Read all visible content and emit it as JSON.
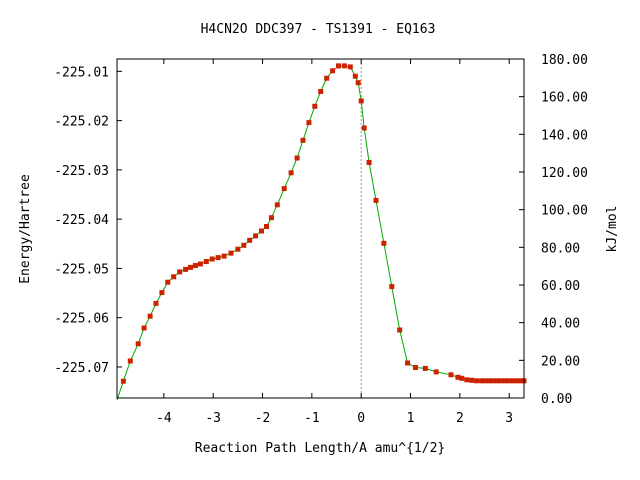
{
  "chart_data": {
    "type": "line",
    "title": "H4CN2O   DDC397 - TS1391 - EQ163",
    "xlabel": "Reaction Path Length/A amu^{1/2}",
    "ylabel": "Energy/Hartree",
    "y2label": "kJ/mol",
    "xlim": [
      -4.95,
      3.3
    ],
    "ylim": [
      -225.0763,
      -225.0075
    ],
    "y2lim": [
      0.0,
      180.0
    ],
    "x_ticks": [
      -4,
      -3,
      -2,
      -1,
      0,
      1,
      2,
      3
    ],
    "x_tick_labels": [
      "-4",
      "-3",
      "-2",
      "-1",
      "0",
      "1",
      "2",
      "3"
    ],
    "y_ticks": [
      -225.01,
      -225.02,
      -225.03,
      -225.04,
      -225.05,
      -225.06,
      -225.07
    ],
    "y_tick_labels": [
      "-225.01",
      "-225.02",
      "-225.03",
      "-225.04",
      "-225.05",
      "-225.06",
      "-225.07"
    ],
    "y2_ticks": [
      0,
      20,
      40,
      60,
      80,
      100,
      120,
      140,
      160,
      180
    ],
    "y2_tick_labels": [
      "0.00",
      "20.00",
      "40.00",
      "60.00",
      "80.00",
      "100.00",
      "120.00",
      "140.00",
      "160.00",
      "180.00"
    ],
    "vertical_marker_x": 0,
    "series": [
      {
        "line_color": "#00aa00",
        "marker_color": "#cc2200",
        "x": [
          -4.82,
          -4.68,
          -4.52,
          -4.4,
          -4.28,
          -4.16,
          -4.04,
          -3.92,
          -3.8,
          -3.68,
          -3.56,
          -3.46,
          -3.36,
          -3.26,
          -3.14,
          -3.02,
          -2.9,
          -2.78,
          -2.64,
          -2.5,
          -2.38,
          -2.26,
          -2.14,
          -2.02,
          -1.92,
          -1.82,
          -1.7,
          -1.56,
          -1.42,
          -1.3,
          -1.18,
          -1.06,
          -0.94,
          -0.82,
          -0.7,
          -0.58,
          -0.46,
          -0.34,
          -0.22,
          -0.12,
          -0.06,
          0.0,
          0.06,
          0.16,
          0.3,
          0.46,
          0.62,
          0.78,
          0.94,
          1.1,
          1.3,
          1.52,
          1.82,
          1.96,
          2.04,
          2.14,
          2.24,
          2.34,
          2.44,
          2.52,
          2.6,
          2.68,
          2.76,
          2.84,
          2.92,
          3.0,
          3.08,
          3.16,
          3.24,
          3.3
        ],
        "y": [
          -225.0729,
          -225.0688,
          -225.0653,
          -225.0621,
          -225.0597,
          -225.0571,
          -225.0549,
          -225.0528,
          -225.0517,
          -225.0507,
          -225.0502,
          -225.0498,
          -225.0494,
          -225.0491,
          -225.0486,
          -225.0481,
          -225.0478,
          -225.0475,
          -225.0469,
          -225.0461,
          -225.0453,
          -225.0443,
          -225.0434,
          -225.0424,
          -225.0415,
          -225.0397,
          -225.0371,
          -225.0338,
          -225.0306,
          -225.0276,
          -225.024,
          -225.0204,
          -225.0171,
          -225.0141,
          -225.0114,
          -225.0099,
          -225.0089,
          -225.0089,
          -225.0091,
          -225.011,
          -225.0123,
          -225.016,
          -225.0215,
          -225.0285,
          -225.0362,
          -225.0449,
          -225.0537,
          -225.0625,
          -225.0692,
          -225.0701,
          -225.0703,
          -225.071,
          -225.0716,
          -225.0721,
          -225.0723,
          -225.0726,
          -225.0727,
          -225.0728,
          -225.0728,
          -225.0728,
          -225.0728,
          -225.0728,
          -225.0728,
          -225.0728,
          -225.0728,
          -225.0728,
          -225.0728,
          -225.0728,
          -225.0728,
          -225.0728
        ]
      }
    ]
  }
}
